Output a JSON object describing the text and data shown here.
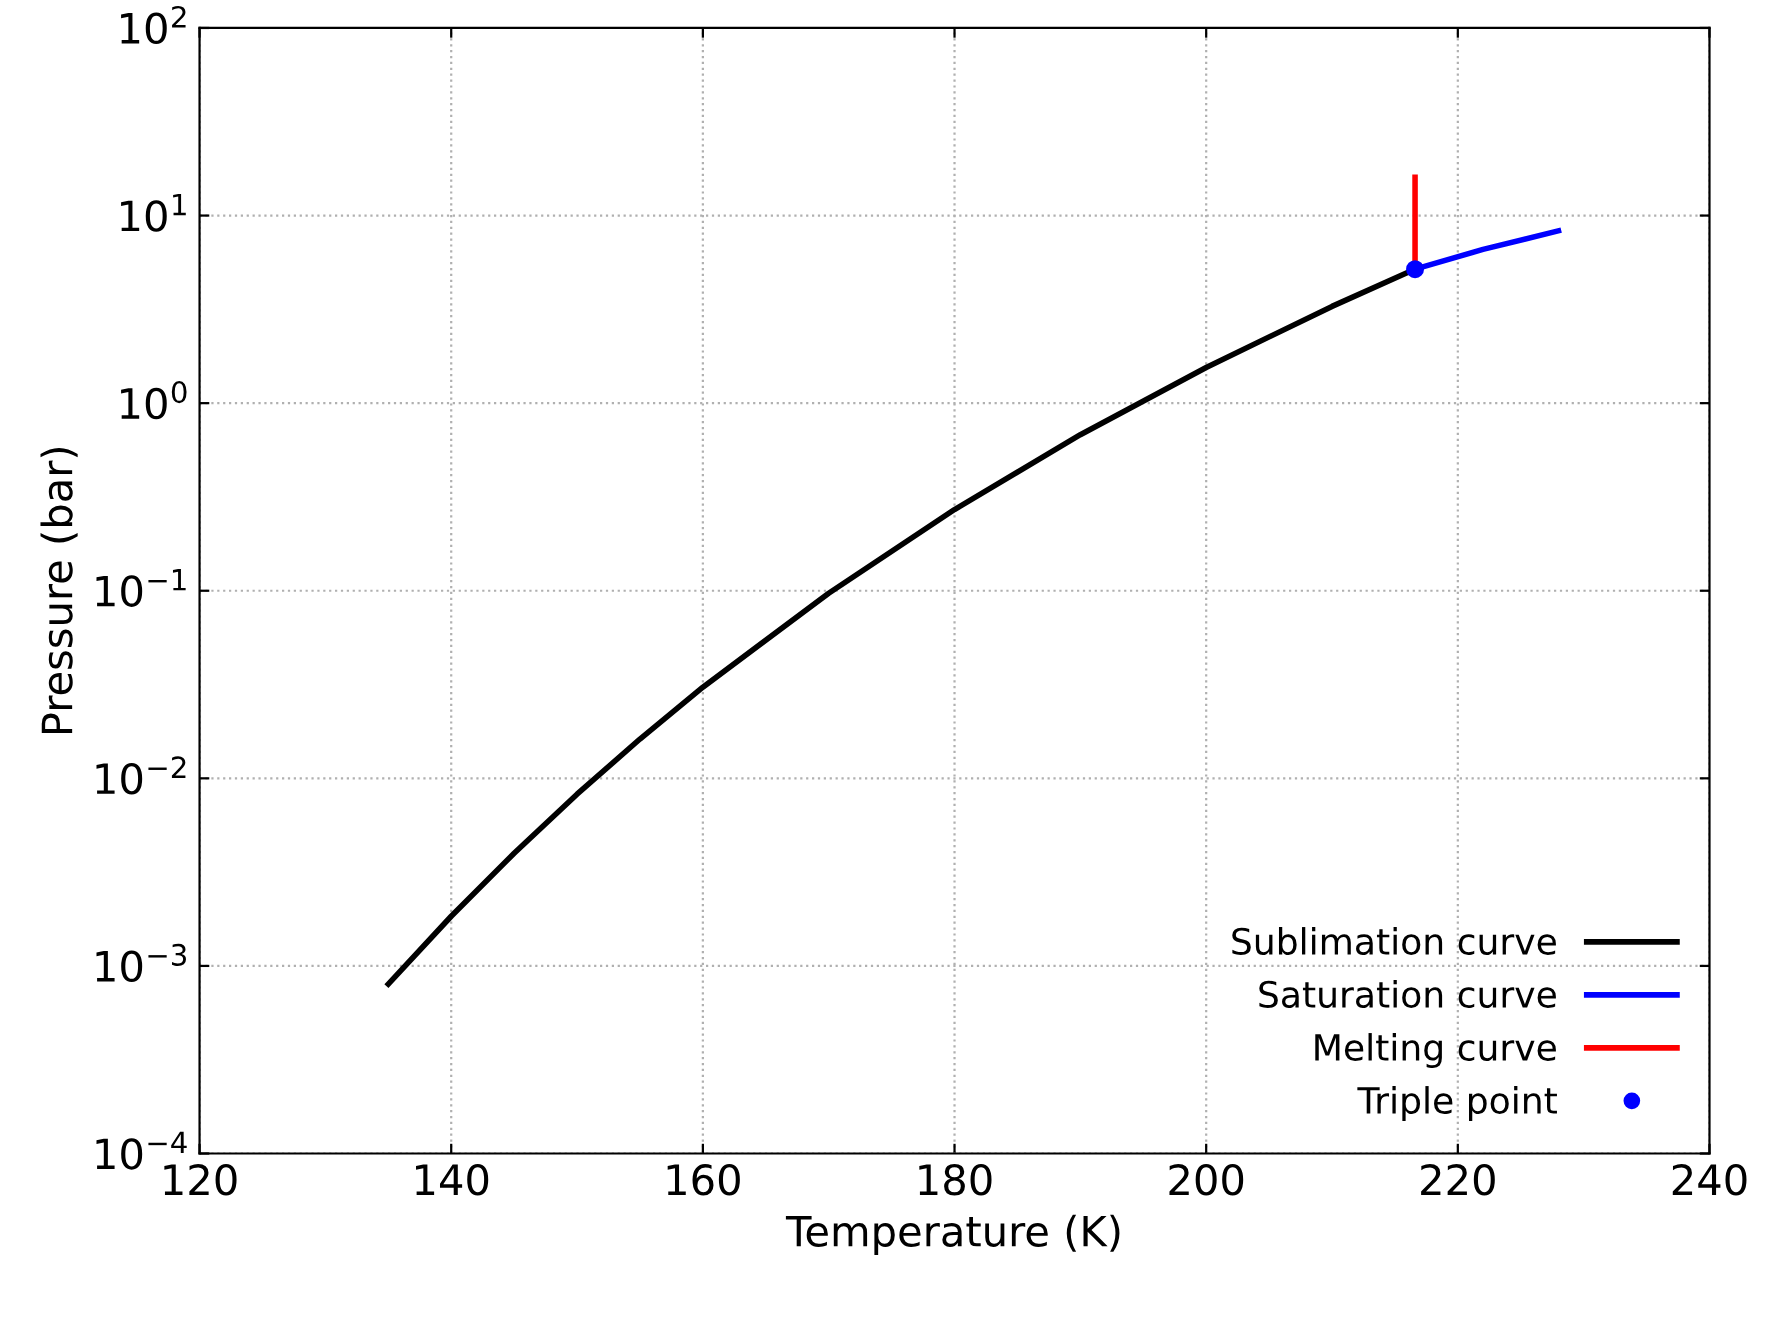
{
  "chart_data": {
    "type": "line",
    "xlabel": "Temperature (K)",
    "ylabel": "Pressure (bar)",
    "log": "y",
    "xlim": [
      120,
      240
    ],
    "xticks": [
      120,
      140,
      160,
      180,
      200,
      220,
      240
    ],
    "ylim": [
      0.0001,
      100
    ],
    "yticks": [
      {
        "value": 0.0001,
        "label": "10$^{−4}$"
      },
      {
        "value": 0.001,
        "label": "10$^{−3}$"
      },
      {
        "value": 0.01,
        "label": "10$^{−2}$"
      },
      {
        "value": 0.1,
        "label": "10$^{−1}$"
      },
      {
        "value": 1,
        "label": "10$^{0}$"
      },
      {
        "value": 10,
        "label": "10$^{1}$"
      },
      {
        "value": 100,
        "label": "10$^{2}$"
      }
    ],
    "grid": true,
    "legend": "bottom right",
    "series": [
      {
        "name": "Sublimation curve",
        "color": "#000000",
        "x": [
          135,
          140,
          145,
          150,
          155,
          160,
          170,
          180,
          190,
          200,
          210,
          216.6
        ],
        "values": [
          0.0008,
          0.00184,
          0.00399,
          0.00823,
          0.0162,
          0.0306,
          0.097,
          0.271,
          0.679,
          1.55,
          3.28,
          5.18
        ]
      },
      {
        "name": "Saturation curve",
        "color": "#0000ff",
        "x": [
          216.6,
          222,
          228
        ],
        "values": [
          5.18,
          6.6,
          8.3
        ]
      },
      {
        "name": "Melting curve",
        "color": "#ff0000",
        "x": [
          216.6,
          216.6
        ],
        "values": [
          5.18,
          16
        ]
      },
      {
        "name": "Triple point",
        "color": "#0000ff",
        "type": "scatter",
        "marker": "circle",
        "x": [
          216.6
        ],
        "values": [
          5.18
        ]
      }
    ]
  }
}
